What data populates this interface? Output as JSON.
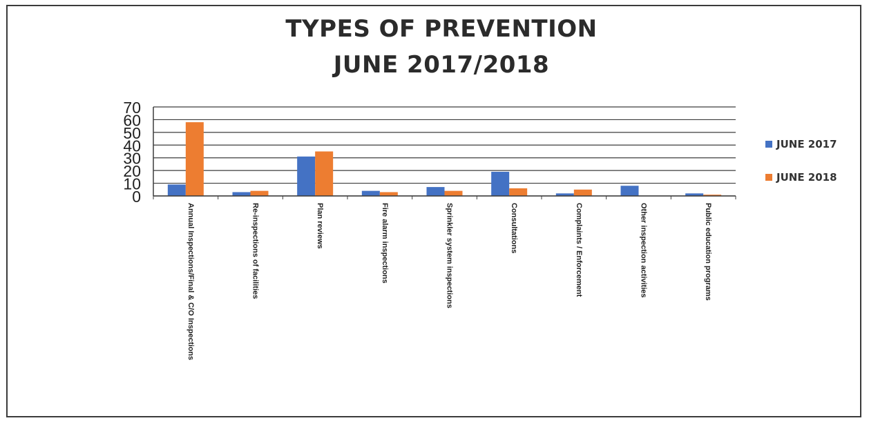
{
  "chart_data": {
    "type": "bar",
    "title_lines": [
      "TYPES OF PREVENTION",
      "JUNE 2017/2018"
    ],
    "categories": [
      "Annual Inspections/Final & C/O Inspections",
      "Re-inspections of facilities",
      "Plan reviews",
      "Fire alarm inspections",
      "Sprinkler system inspections",
      "Consultations",
      "Complaints / Enforcement",
      "Other inspection activities",
      "Public education programs"
    ],
    "series": [
      {
        "name": "JUNE 2017",
        "color": "#4472c4",
        "values": [
          9,
          3,
          31,
          4,
          7,
          19,
          2,
          8,
          2
        ]
      },
      {
        "name": "JUNE 2018",
        "color": "#ed7d31",
        "values": [
          58,
          4,
          35,
          3,
          4,
          6,
          5,
          0,
          1
        ]
      }
    ],
    "ylim": [
      0,
      70
    ],
    "yticks": [
      0,
      10,
      20,
      30,
      40,
      50,
      60,
      70
    ],
    "grid": true,
    "legend_position": "right"
  }
}
